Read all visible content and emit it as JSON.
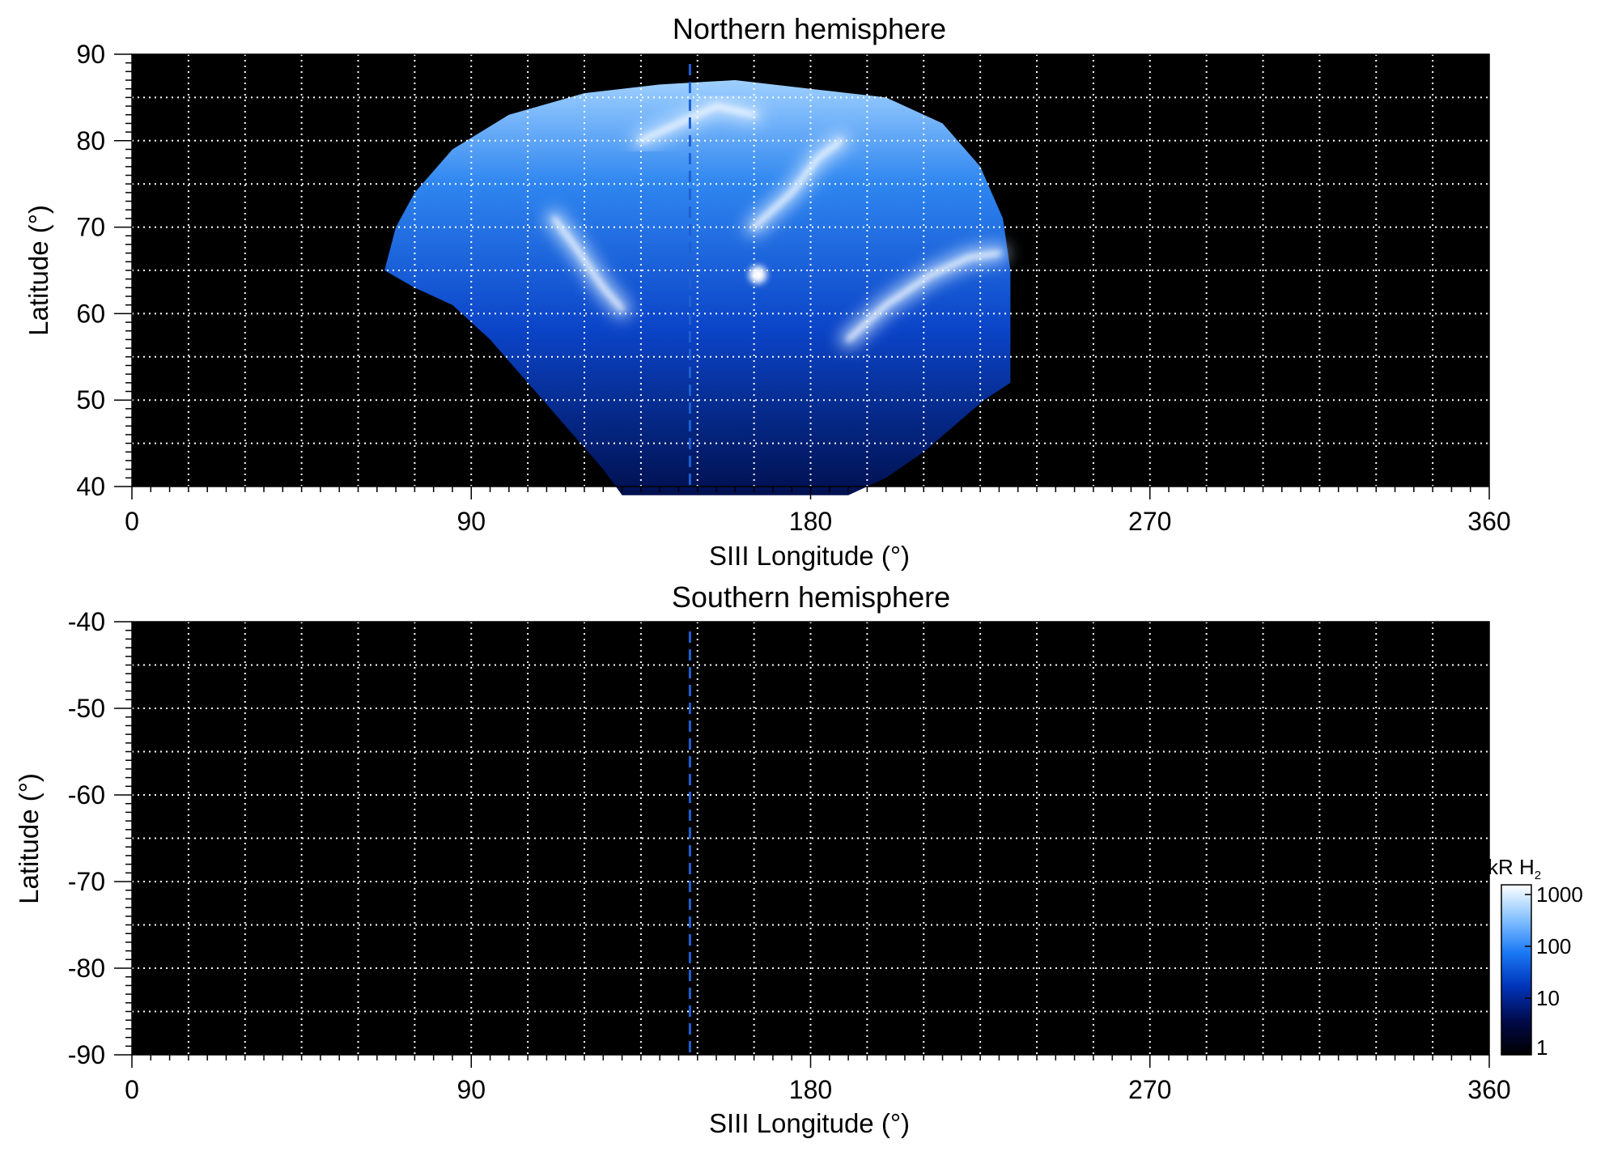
{
  "chart_data": [
    {
      "type": "heatmap",
      "title": "Northern hemisphere",
      "xlabel": "SIII Longitude (°)",
      "ylabel": "Latitude (°)",
      "xlim": [
        0,
        360
      ],
      "ylim": [
        40,
        90
      ],
      "x_ticks": [
        0,
        90,
        180,
        270,
        360
      ],
      "y_ticks": [
        40,
        50,
        60,
        70,
        80,
        90
      ],
      "grid": true,
      "reference_longitude": 148,
      "reference_line_color": "#1f5fd0",
      "emission_region": {
        "longitude_range": [
          67,
          233
        ],
        "latitude_range": [
          39,
          87
        ],
        "polar_cap_outline": [
          [
            67,
            65
          ],
          [
            70,
            70
          ],
          [
            75,
            74
          ],
          [
            85,
            79
          ],
          [
            100,
            83
          ],
          [
            120,
            85.5
          ],
          [
            140,
            86.5
          ],
          [
            160,
            87
          ],
          [
            180,
            86
          ],
          [
            200,
            85
          ],
          [
            215,
            82
          ],
          [
            225,
            77
          ],
          [
            231,
            71
          ],
          [
            233,
            65
          ],
          [
            233,
            58
          ],
          [
            233,
            52
          ],
          [
            226,
            50
          ],
          [
            218,
            47
          ],
          [
            210,
            44
          ],
          [
            200,
            41
          ],
          [
            190,
            39
          ],
          [
            130,
            39
          ],
          [
            125,
            42
          ],
          [
            115,
            47
          ],
          [
            105,
            52
          ],
          [
            95,
            57
          ],
          [
            85,
            61
          ],
          [
            75,
            63
          ],
          [
            67,
            65
          ]
        ],
        "bright_arcs": [
          [
            [
              112,
              71
            ],
            [
              118,
              67.5
            ],
            [
              125,
              63
            ],
            [
              130,
              60.5
            ]
          ],
          [
            [
              190,
              57
            ],
            [
              200,
              61
            ],
            [
              212,
              64.5
            ],
            [
              222,
              66.5
            ],
            [
              230,
              67
            ]
          ],
          [
            [
              165,
              70
            ],
            [
              175,
              74
            ],
            [
              182,
              78
            ],
            [
              188,
              80
            ]
          ],
          [
            [
              135,
              80
            ],
            [
              145,
              82
            ],
            [
              155,
              84
            ],
            [
              165,
              83
            ]
          ]
        ],
        "bright_spot": [
          166,
          64.5
        ]
      }
    },
    {
      "type": "heatmap",
      "title": "Southern hemisphere",
      "xlabel": "SIII Longitude (°)",
      "ylabel": "Latitude (°)",
      "xlim": [
        0,
        360
      ],
      "ylim": [
        -90,
        -40
      ],
      "x_ticks": [
        0,
        90,
        180,
        270,
        360
      ],
      "y_ticks": [
        -90,
        -80,
        -70,
        -60,
        -50,
        -40
      ],
      "grid": true,
      "reference_longitude": 148,
      "reference_line_color": "#1f5fd0",
      "emission_region": null
    }
  ],
  "colorbar": {
    "label_main": "kR H",
    "label_sub": "2",
    "scale": "log",
    "ticks": [
      "1",
      "10",
      "100",
      "1000"
    ],
    "colors": [
      "#000000",
      "#000a4a",
      "#0033b8",
      "#1a78f5",
      "#86c2ff",
      "#ffffff"
    ]
  }
}
